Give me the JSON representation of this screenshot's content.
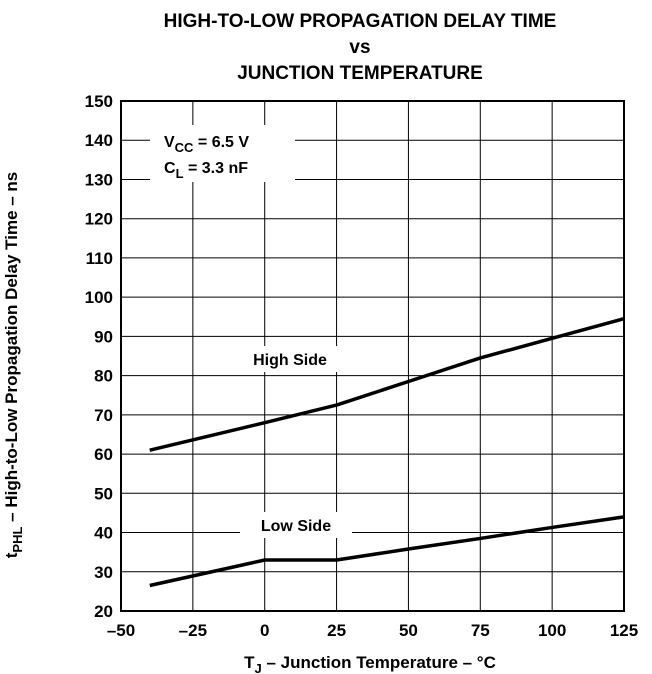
{
  "chart_data": {
    "type": "line",
    "title_lines": [
      "HIGH-TO-LOW PROPAGATION DELAY TIME",
      "vs",
      "JUNCTION TEMPERATURE"
    ],
    "xlabel": {
      "main": "T",
      "sub": "J",
      "rest": " – Junction Temperature – °C"
    },
    "ylabel": {
      "main": "t",
      "sub": "PHL",
      "rest": "  – High-to-Low Propagation Delay Time – ns"
    },
    "xlim": [
      -50,
      125
    ],
    "ylim": [
      20,
      150
    ],
    "x_ticks": [
      -50,
      -25,
      0,
      25,
      50,
      75,
      100,
      125
    ],
    "x_tick_labels": [
      "–50",
      "–25",
      "0",
      "25",
      "50",
      "75",
      "100",
      "125"
    ],
    "y_ticks": [
      20,
      30,
      40,
      50,
      60,
      70,
      80,
      90,
      100,
      110,
      120,
      130,
      140,
      150
    ],
    "y_tick_labels": [
      "20",
      "30",
      "40",
      "50",
      "60",
      "70",
      "80",
      "90",
      "100",
      "110",
      "120",
      "130",
      "140",
      "150"
    ],
    "grid": true,
    "series": [
      {
        "name": "High Side",
        "x": [
          -40,
          0,
          25,
          50,
          75,
          100,
          125
        ],
        "y": [
          61,
          68,
          72.5,
          78.5,
          84.5,
          89.5,
          94.5
        ]
      },
      {
        "name": "Low Side",
        "x": [
          -40,
          0,
          25,
          50,
          75,
          100,
          125
        ],
        "y": [
          26.5,
          33,
          33,
          35.8,
          38.5,
          41.3,
          44
        ]
      }
    ],
    "conditions": [
      {
        "main": "V",
        "sub": "CC",
        "rest": " = 6.5 V"
      },
      {
        "main": "C",
        "sub": "L",
        "rest": " = 3.3 nF"
      }
    ]
  }
}
